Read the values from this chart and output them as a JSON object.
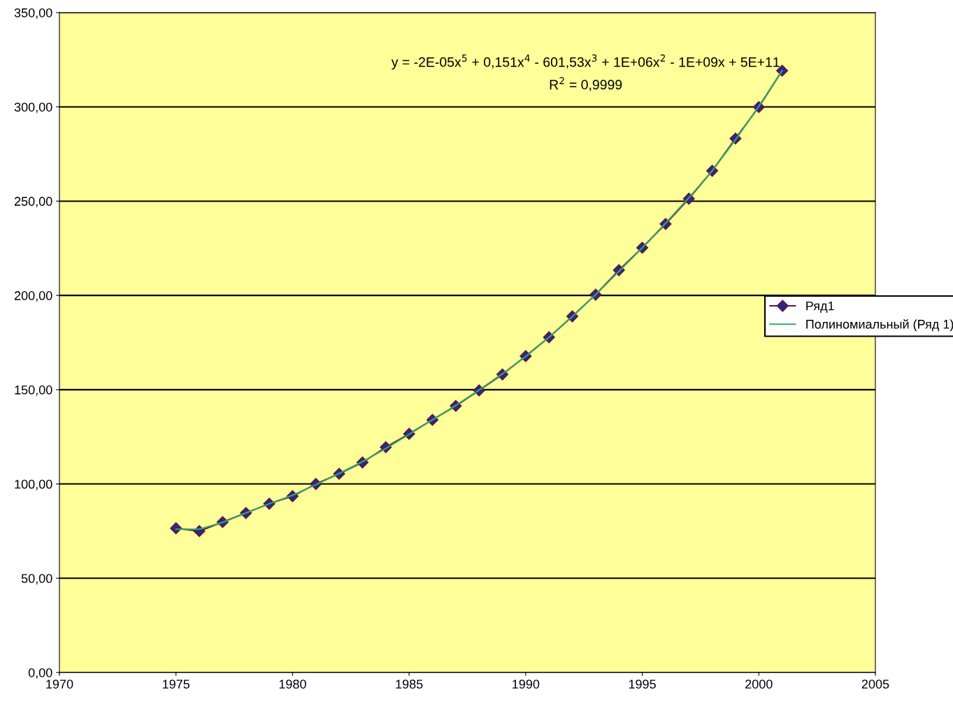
{
  "chart_data": {
    "type": "line",
    "x": [
      1975,
      1976,
      1977,
      1978,
      1979,
      1980,
      1981,
      1982,
      1983,
      1984,
      1985,
      1986,
      1987,
      1988,
      1989,
      1990,
      1991,
      1992,
      1993,
      1994,
      1995,
      1996,
      1997,
      1998,
      1999,
      2000,
      2001
    ],
    "series": [
      {
        "name": "Ряд1",
        "color": "#6b0f3a",
        "marker": "diamond",
        "values": [
          76.5,
          75.0,
          79.8,
          84.6,
          89.5,
          93.5,
          100.0,
          105.4,
          111.4,
          119.5,
          126.6,
          134.0,
          141.4,
          149.6,
          158.1,
          167.8,
          177.8,
          188.9,
          200.4,
          213.4,
          225.3,
          237.9,
          251.3,
          266.1,
          283.2,
          299.9,
          319.2
        ]
      },
      {
        "name": "Полиномиальный (Ряд 1)",
        "type": "line",
        "color": "#3aa66a",
        "marker": "none",
        "x": [
          1975,
          1976,
          1977,
          1978,
          1979,
          1980,
          1981,
          1982,
          1983,
          1984,
          1985,
          1986,
          1987,
          1988,
          1989,
          1990,
          1991,
          1992,
          1993,
          1994,
          1995,
          1996,
          1997,
          1998,
          1999,
          2000,
          2001
        ],
        "values": [
          76.0,
          76.0,
          79.6,
          84.6,
          89.5,
          94.0,
          99.6,
          105.6,
          111.8,
          118.8,
          126.3,
          134.0,
          141.6,
          149.8,
          158.4,
          167.6,
          177.8,
          188.7,
          200.4,
          212.8,
          225.3,
          238.3,
          251.8,
          266.1,
          282.6,
          300.3,
          319.2
        ]
      }
    ],
    "xlim": [
      1970,
      2005
    ],
    "xticks": [
      1970,
      1975,
      1980,
      1985,
      1990,
      1995,
      2000,
      2005
    ],
    "ylim": [
      0,
      350
    ],
    "yticks": [
      {
        "value": 0,
        "label": "0,00"
      },
      {
        "value": 50,
        "label": "50,00"
      },
      {
        "value": 100,
        "label": "100,00"
      },
      {
        "value": 150,
        "label": "150,00"
      },
      {
        "value": 200,
        "label": "200,00"
      },
      {
        "value": 250,
        "label": "250,00"
      },
      {
        "value": 300,
        "label": "300,00"
      },
      {
        "value": 350,
        "label": "350,00"
      }
    ],
    "grid": "y",
    "legend": "right",
    "line_style": "solid",
    "annotations": [
      "y = -2E-05x$^{5}$ + 0,151x$^{4}$ - 601,53x$^{3}$ + 1E+06x$^{2}$ - 1E+09x + 5E+11",
      "R$^{2}$ = 0,9999"
    ]
  }
}
